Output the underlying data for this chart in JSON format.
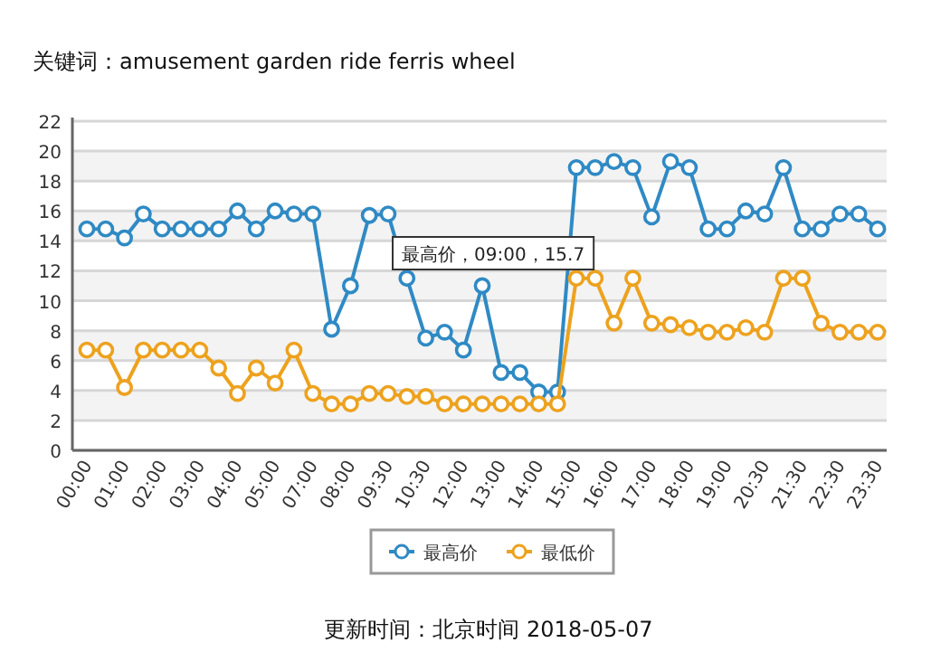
{
  "chart_data": {
    "type": "line",
    "title": "关键词：amusement garden ride ferris wheel",
    "categories": [
      "00:00",
      null,
      "01:00",
      null,
      "02:00",
      null,
      "03:00",
      null,
      "04:00",
      null,
      "05:00",
      null,
      "07:00",
      null,
      "08:00",
      null,
      "09:30",
      null,
      "10:30",
      null,
      "12:00",
      null,
      "13:00",
      null,
      "14:00",
      null,
      "15:00",
      null,
      "16:00",
      null,
      "17:00",
      null,
      "18:00",
      null,
      "19:00",
      null,
      "20:30",
      null,
      "21:30",
      null,
      "22:30",
      null,
      "23:30"
    ],
    "series": [
      {
        "name": "最高价",
        "color": "#2f8ac4",
        "values": [
          14.8,
          14.8,
          14.2,
          15.8,
          14.8,
          14.8,
          14.8,
          14.8,
          16.0,
          14.8,
          16.0,
          15.8,
          15.8,
          8.1,
          11.0,
          15.7,
          15.8,
          11.5,
          7.5,
          7.9,
          6.7,
          11.0,
          5.2,
          5.2,
          3.9,
          3.9,
          18.9,
          18.9,
          19.3,
          18.9,
          15.6,
          19.3,
          18.9,
          14.8,
          14.8,
          16.0,
          15.8,
          18.9,
          14.8,
          14.8,
          15.8,
          15.8,
          14.8
        ]
      },
      {
        "name": "最低价",
        "color": "#eda21e",
        "values": [
          6.7,
          6.7,
          4.2,
          6.7,
          6.7,
          6.7,
          6.7,
          5.5,
          3.8,
          5.5,
          4.5,
          6.7,
          3.8,
          3.1,
          3.1,
          3.8,
          3.8,
          3.6,
          3.6,
          3.1,
          3.1,
          3.1,
          3.1,
          3.1,
          3.1,
          3.1,
          11.5,
          11.5,
          8.5,
          11.5,
          8.5,
          8.4,
          8.2,
          7.9,
          7.9,
          8.2,
          7.9,
          11.5,
          11.5,
          8.5,
          7.9,
          7.9,
          7.9
        ]
      }
    ],
    "ylim": [
      0,
      22
    ],
    "yticks": [
      0,
      2,
      4,
      6,
      8,
      10,
      12,
      14,
      16,
      18,
      20,
      22
    ],
    "grid": "y",
    "legend": "bottom",
    "marker": "circle",
    "line_style": "solid",
    "annotations": [
      "最高价，09:00，15.7",
      "更新时间：北京时间 2018-05-07"
    ]
  }
}
